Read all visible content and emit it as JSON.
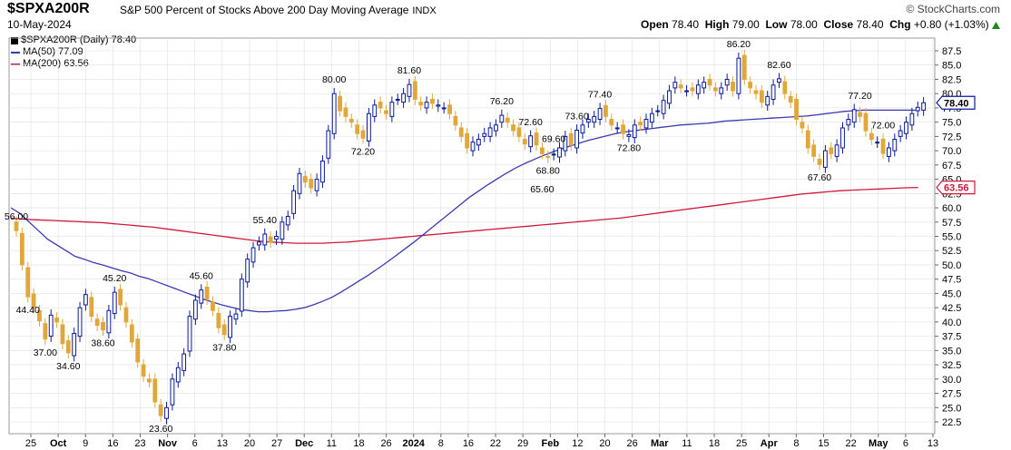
{
  "header": {
    "symbol": "$SPXA200R",
    "description": "S&P 500 Percent of Stocks Above 200 Day Moving Average",
    "exchange": "INDX",
    "date": "10-May-2024",
    "brand": "© StockCharts.com",
    "open_label": "Open",
    "open": "78.40",
    "high_label": "High",
    "high": "79.00",
    "low_label": "Low",
    "low": "78.00",
    "close_label": "Close",
    "close": "78.40",
    "chg_label": "Chg",
    "chg": "+0.80 (+1.03%)",
    "chg_icon": "up-triangle-icon"
  },
  "legend": {
    "main": "$SPXA200R (Daily) 78.40",
    "ma50": "MA(50) 77.09",
    "ma200": "MA(200) 63.56"
  },
  "colors": {
    "up": "#0a1a96",
    "down": "#e0a83a",
    "ma50": "#3a3ab0",
    "ma200": "#d01838",
    "grid": "#e0e0e0"
  },
  "tags": {
    "last": "78.40",
    "ma200": "63.56"
  },
  "chart_data": {
    "type": "candlestick",
    "ylim": [
      22.5,
      87.5
    ],
    "y_ticks": [
      "22.5",
      "25.0",
      "27.5",
      "30.0",
      "32.5",
      "35.0",
      "37.5",
      "40.0",
      "42.5",
      "45.0",
      "47.5",
      "50.0",
      "52.5",
      "55.0",
      "57.5",
      "60.0",
      "62.5",
      "65.0",
      "67.5",
      "70.0",
      "72.5",
      "75.0",
      "77.5",
      "80.0",
      "82.5",
      "85.0",
      "87.5"
    ],
    "x_ticks": [
      "25",
      "Oct",
      "9",
      "16",
      "23",
      "Nov",
      "6",
      "13",
      "20",
      "27",
      "Dec",
      "11",
      "18",
      "26",
      "2024",
      "8",
      "16",
      "22",
      "29",
      "Feb",
      "12",
      "20",
      "26",
      "Mar",
      "11",
      "18",
      "25",
      "Apr",
      "8",
      "15",
      "22",
      "May",
      "6",
      "13"
    ],
    "bold_x_ticks": [
      "Oct",
      "Nov",
      "Dec",
      "2024",
      "Feb",
      "Mar",
      "Apr",
      "May"
    ],
    "closes": [
      56.0,
      50.0,
      44.4,
      42.5,
      40.2,
      37.0,
      41.2,
      40.0,
      36.2,
      34.6,
      38.0,
      42.5,
      44.8,
      41.0,
      39.4,
      38.6,
      42.0,
      45.2,
      43.0,
      40.0,
      36.5,
      33.0,
      30.5,
      29.5,
      26.0,
      23.6,
      25.0,
      30.0,
      32.0,
      34.4,
      41.0,
      43.8,
      45.6,
      44.0,
      42.0,
      39.0,
      37.8,
      41.0,
      41.4,
      47.5,
      51.0,
      53.0,
      54.0,
      55.4,
      54.0,
      55.0,
      57.5,
      58.5,
      63.0,
      66.0,
      64.5,
      63.5,
      65.0,
      68.2,
      73.5,
      80.0,
      77.0,
      76.0,
      75.0,
      73.0,
      72.2,
      76.5,
      78.0,
      77.5,
      76.5,
      78.5,
      79.0,
      80.0,
      81.6,
      79.0,
      78.0,
      78.5,
      78.3,
      78.0,
      77.5,
      76.5,
      74.5,
      72.5,
      70.5,
      71.5,
      72.0,
      73.0,
      74.0,
      74.5,
      76.2,
      75.0,
      73.5,
      72.5,
      71.2,
      72.6,
      71.0,
      69.5,
      68.8,
      69.4,
      70.5,
      72.5,
      71.0,
      73.6,
      74.5,
      75.5,
      76.0,
      77.4,
      76.0,
      74.5,
      74.0,
      73.0,
      72.8,
      74.5,
      74.5,
      75.5,
      76.5,
      77.0,
      78.8,
      80.5,
      82.0,
      81.0,
      80.5,
      80.5,
      81.5,
      82.0,
      81.5,
      80.5,
      81.0,
      82.5,
      80.5,
      86.2,
      82.5,
      81.0,
      80.0,
      78.5,
      79.5,
      81.5,
      82.6,
      80.0,
      78.5,
      75.5,
      74.0,
      70.5,
      69.0,
      67.6,
      70.0,
      69.5,
      71.0,
      74.0,
      75.5,
      77.2,
      76.0,
      73.5,
      72.0,
      71.5,
      69.5,
      70.5,
      72.0,
      73.5,
      75.0,
      76.5,
      77.6,
      78.4
    ],
    "ma50": [
      60.0,
      59.0,
      57.5,
      56.0,
      54.5,
      53.5,
      52.5,
      51.5,
      51.0,
      50.4,
      50.0,
      49.5,
      49.0,
      48.6,
      48.0,
      47.6,
      47.0,
      46.4,
      45.8,
      45.2,
      44.6,
      44.0,
      43.5,
      43.0,
      42.6,
      42.2,
      42.0,
      41.8,
      41.8,
      41.9,
      42.0,
      42.2,
      42.5,
      43.0,
      43.6,
      44.3,
      45.2,
      46.2,
      47.2,
      48.2,
      49.3,
      50.4,
      51.6,
      52.8,
      54.0,
      55.3,
      56.6,
      57.9,
      59.2,
      60.5,
      61.8,
      62.9,
      64.0,
      65.0,
      66.0,
      66.9,
      67.7,
      68.4,
      69.1,
      69.7,
      70.3,
      70.8,
      71.3,
      71.8,
      72.2,
      72.6,
      73.0,
      73.3,
      73.5,
      73.7,
      73.9,
      74.1,
      74.3,
      74.5,
      74.6,
      74.7,
      74.8,
      75.0,
      75.2,
      75.3,
      75.4,
      75.5,
      75.6,
      75.7,
      75.8,
      75.9,
      76.0,
      76.1,
      76.3,
      76.5,
      76.7,
      76.9,
      77.0,
      77.1,
      77.1,
      77.1,
      77.1,
      77.1,
      77.1,
      77.09
    ],
    "ma200": [
      58.2,
      58.0,
      57.9,
      57.8,
      57.7,
      57.6,
      57.5,
      57.4,
      57.2,
      57.0,
      56.8,
      56.6,
      56.3,
      56.0,
      55.7,
      55.4,
      55.1,
      54.8,
      54.5,
      54.2,
      54.0,
      53.9,
      53.8,
      53.8,
      53.8,
      53.9,
      54.0,
      54.2,
      54.4,
      54.6,
      54.8,
      55.0,
      55.2,
      55.4,
      55.6,
      55.8,
      56.0,
      56.2,
      56.4,
      56.6,
      56.8,
      57.0,
      57.2,
      57.4,
      57.6,
      57.8,
      58.0,
      58.2,
      58.5,
      58.8,
      59.1,
      59.4,
      59.7,
      60.0,
      60.3,
      60.6,
      60.9,
      61.2,
      61.5,
      61.8,
      62.1,
      62.4,
      62.6,
      62.8,
      63.0,
      63.1,
      63.2,
      63.3,
      63.4,
      63.5,
      63.56
    ],
    "annotations": [
      {
        "label": "56.00",
        "i": 0
      },
      {
        "label": "37.00",
        "i": 5
      },
      {
        "label": "44.40",
        "i": 2
      },
      {
        "label": "34.60",
        "i": 9
      },
      {
        "label": "38.60",
        "i": 15
      },
      {
        "label": "45.20",
        "i": 17
      },
      {
        "label": "23.60",
        "i": 25
      },
      {
        "label": "45.60",
        "i": 32
      },
      {
        "label": "37.80",
        "i": 36
      },
      {
        "label": "55.40",
        "i": 43
      },
      {
        "label": "80.00",
        "i": 55
      },
      {
        "label": "72.20",
        "i": 60
      },
      {
        "label": "81.60",
        "i": 68
      },
      {
        "label": "76.20",
        "i": 84
      },
      {
        "label": "72.60",
        "i": 89
      },
      {
        "label": "68.80",
        "i": 92
      },
      {
        "label": "73.60",
        "i": 97
      },
      {
        "label": "65.60",
        "i": 91
      },
      {
        "label": "69.60",
        "i": 93
      },
      {
        "label": "77.40",
        "i": 101
      },
      {
        "label": "72.80",
        "i": 106
      },
      {
        "label": "86.20",
        "i": 125
      },
      {
        "label": "82.60",
        "i": 132
      },
      {
        "label": "67.60",
        "i": 139
      },
      {
        "label": "77.20",
        "i": 146
      },
      {
        "label": "72.00",
        "i": 150
      }
    ]
  }
}
